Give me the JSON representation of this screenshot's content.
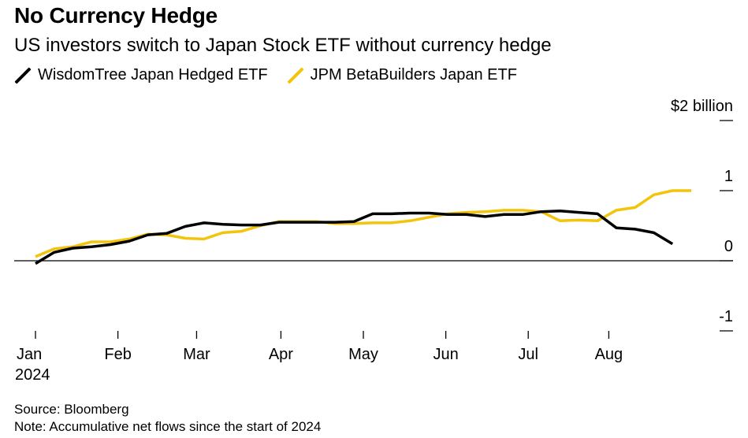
{
  "title": "No Currency Hedge",
  "subtitle": "US investors switch to Japan Stock ETF without currency hedge",
  "source": "Source: Bloomberg",
  "note": "Note: Accumulative net flows since the start of 2024",
  "chart_data": {
    "type": "line",
    "title": "No Currency Hedge",
    "ylabel": "",
    "xlabel": "",
    "y_unit_label": "$2 billion",
    "ylim": [
      -1,
      2
    ],
    "yticks": [
      {
        "value": 2,
        "label": "$2 billion"
      },
      {
        "value": 1,
        "label": "1"
      },
      {
        "value": 0,
        "label": "0"
      },
      {
        "value": -1,
        "label": "-1"
      }
    ],
    "xlim": [
      0,
      36
    ],
    "xticks": [
      {
        "value": 0,
        "label": "Jan",
        "sub": "2024"
      },
      {
        "value": 4.4,
        "label": "Feb",
        "sub": ""
      },
      {
        "value": 8.6,
        "label": "Mar",
        "sub": ""
      },
      {
        "value": 13.1,
        "label": "Apr",
        "sub": ""
      },
      {
        "value": 17.5,
        "label": "May",
        "sub": ""
      },
      {
        "value": 21.9,
        "label": "Jun",
        "sub": ""
      },
      {
        "value": 26.3,
        "label": "Jul",
        "sub": ""
      },
      {
        "value": 30.6,
        "label": "Aug",
        "sub": ""
      }
    ],
    "legend_position": "top-left",
    "grid": false,
    "series": [
      {
        "name": "WisdomTree Japan Hedged ETF",
        "color": "#000000",
        "x": [
          0,
          1,
          2,
          3,
          4,
          5,
          6,
          7,
          8,
          9,
          10,
          11,
          12,
          13,
          14,
          15,
          16,
          17,
          18,
          19,
          20,
          21,
          22,
          23,
          24,
          25,
          26,
          27,
          28,
          29,
          30,
          31,
          32,
          33,
          34,
          35
        ],
        "values": [
          -0.04,
          0.12,
          0.18,
          0.2,
          0.23,
          0.28,
          0.37,
          0.39,
          0.49,
          0.54,
          0.52,
          0.51,
          0.51,
          0.55,
          0.55,
          0.55,
          0.55,
          0.56,
          0.67,
          0.67,
          0.68,
          0.68,
          0.66,
          0.66,
          0.63,
          0.66,
          0.66,
          0.7,
          0.71,
          0.69,
          0.67,
          0.47,
          0.45,
          0.4,
          0.24,
          null
        ]
      },
      {
        "name": "JPM BetaBuilders Japan ETF",
        "color": "#f2c40c",
        "x": [
          0,
          1,
          2,
          3,
          4,
          5,
          6,
          7,
          8,
          9,
          10,
          11,
          12,
          13,
          14,
          15,
          16,
          17,
          18,
          19,
          20,
          21,
          22,
          23,
          24,
          25,
          26,
          27,
          28,
          29,
          30,
          31,
          32,
          33,
          34,
          35
        ],
        "values": [
          0.06,
          0.17,
          0.2,
          0.27,
          0.27,
          0.31,
          0.38,
          0.37,
          0.32,
          0.31,
          0.4,
          0.42,
          0.5,
          0.56,
          0.56,
          0.56,
          0.53,
          0.53,
          0.54,
          0.54,
          0.57,
          0.62,
          0.67,
          0.69,
          0.7,
          0.72,
          0.72,
          0.7,
          0.57,
          0.58,
          0.57,
          0.72,
          0.76,
          0.94,
          1.0,
          1.0
        ]
      }
    ]
  }
}
